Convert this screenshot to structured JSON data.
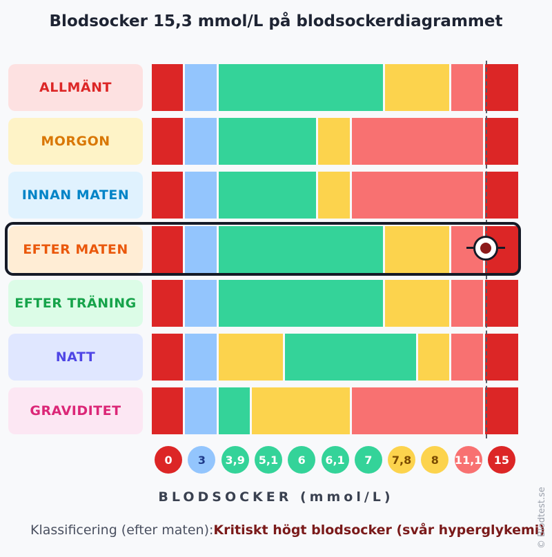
{
  "title": "Blodsocker 15,3 mmol/L på blodsockerdiagrammet",
  "chart_data": {
    "type": "bar",
    "value": 15.3,
    "unit": "mmol/L",
    "xlabel": "BLODSOCKER (mmol/L)",
    "ticks": [
      "0",
      "3",
      "3,9",
      "5,1",
      "6",
      "6,1",
      "7",
      "7,8",
      "8",
      "11,1",
      "15"
    ],
    "tick_colors": [
      "#dc2626",
      "#93c5fd",
      "#34d399",
      "#34d399",
      "#34d399",
      "#34d399",
      "#34d399",
      "#fcd34d",
      "#fcd34d",
      "#f87171",
      "#dc2626"
    ],
    "tick_text_colors": [
      "#ffffff",
      "#1e3a8a",
      "#ffffff",
      "#ffffff",
      "#ffffff",
      "#ffffff",
      "#ffffff",
      "#7a4a00",
      "#7a4a00",
      "#ffffff",
      "#ffffff"
    ],
    "highlighted_row": 3,
    "colors": {
      "red": "#dc2626",
      "blue": "#93c5fd",
      "green": "#34d399",
      "yellow": "#fcd34d",
      "salmon": "#f87171"
    },
    "rows": [
      {
        "label": "ALLMÄNT",
        "label_color": "#dc2626",
        "label_bg": "#fde1e1",
        "segments": [
          [
            0,
            1,
            "red"
          ],
          [
            1,
            2,
            "blue"
          ],
          [
            2,
            7,
            "green"
          ],
          [
            7,
            9,
            "yellow"
          ],
          [
            9,
            10,
            "salmon"
          ],
          [
            10,
            11,
            "red"
          ]
        ]
      },
      {
        "label": "MORGON",
        "label_color": "#d97706",
        "label_bg": "#fef3c7",
        "segments": [
          [
            0,
            1,
            "red"
          ],
          [
            1,
            2,
            "blue"
          ],
          [
            2,
            5,
            "green"
          ],
          [
            5,
            6,
            "yellow"
          ],
          [
            6,
            10,
            "salmon"
          ],
          [
            10,
            11,
            "red"
          ]
        ]
      },
      {
        "label": "INNAN MATEN",
        "label_color": "#0284c7",
        "label_bg": "#e0f2fe",
        "segments": [
          [
            0,
            1,
            "red"
          ],
          [
            1,
            2,
            "blue"
          ],
          [
            2,
            5,
            "green"
          ],
          [
            5,
            6,
            "yellow"
          ],
          [
            6,
            10,
            "salmon"
          ],
          [
            10,
            11,
            "red"
          ]
        ]
      },
      {
        "label": "EFTER MATEN",
        "label_color": "#ea580c",
        "label_bg": "#ffedd5",
        "segments": [
          [
            0,
            1,
            "red"
          ],
          [
            1,
            2,
            "blue"
          ],
          [
            2,
            7,
            "green"
          ],
          [
            7,
            9,
            "yellow"
          ],
          [
            9,
            10,
            "salmon"
          ],
          [
            10,
            11,
            "red"
          ]
        ]
      },
      {
        "label": "EFTER TRÄNING",
        "label_color": "#16a34a",
        "label_bg": "#dcfce7",
        "segments": [
          [
            0,
            1,
            "red"
          ],
          [
            1,
            2,
            "blue"
          ],
          [
            2,
            7,
            "green"
          ],
          [
            7,
            9,
            "yellow"
          ],
          [
            9,
            10,
            "salmon"
          ],
          [
            10,
            11,
            "red"
          ]
        ]
      },
      {
        "label": "NATT",
        "label_color": "#4f46e5",
        "label_bg": "#e0e7ff",
        "segments": [
          [
            0,
            1,
            "red"
          ],
          [
            1,
            2,
            "blue"
          ],
          [
            2,
            4,
            "yellow"
          ],
          [
            4,
            8,
            "green"
          ],
          [
            8,
            9,
            "yellow"
          ],
          [
            9,
            10,
            "salmon"
          ],
          [
            10,
            11,
            "red"
          ]
        ]
      },
      {
        "label": "GRAVIDITET",
        "label_color": "#db2777",
        "label_bg": "#fce7f3",
        "segments": [
          [
            0,
            1,
            "red"
          ],
          [
            1,
            2,
            "blue"
          ],
          [
            2,
            3,
            "green"
          ],
          [
            3,
            6,
            "yellow"
          ],
          [
            6,
            10,
            "salmon"
          ],
          [
            10,
            11,
            "red"
          ]
        ]
      }
    ]
  },
  "classification": {
    "prefix": "Klassificering (efter maten):",
    "value": "Kritiskt högt blodsocker (svår hyperglykemi)"
  },
  "copyright": "© Blodtest.se"
}
